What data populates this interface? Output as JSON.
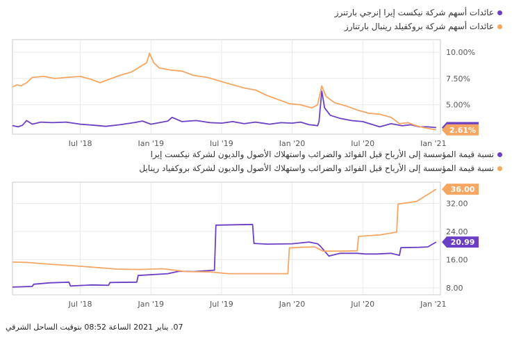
{
  "colors": {
    "purple": "#6b3fc4",
    "orange": "#f5a663",
    "grid": "#e8e8e8",
    "axis": "#c8c8c8"
  },
  "timestamp": "07. يناير 2021 الساعة 08:52 بتوقيت الساحل الشرقي",
  "chart_data": [
    {
      "type": "line",
      "y_format": "percent",
      "legend": [
        "عائدات أسهم شركة نيكست إيرا إنرجي بارتنرز",
        "عائدات أسهم شركة بروكفيلد رينبال بارتنارز"
      ],
      "x_ticks": [
        {
          "label": "Jul '18",
          "x": 2018.5
        },
        {
          "label": "Jan '19",
          "x": 2019.0
        },
        {
          "label": "Jul '19",
          "x": 2019.5
        },
        {
          "label": "Jan '20",
          "x": 2020.0
        },
        {
          "label": "Jul '20",
          "x": 2020.5
        },
        {
          "label": "Jan '21",
          "x": 2021.0
        }
      ],
      "y_ticks": [
        {
          "label": "5.00%",
          "v": 5.0
        },
        {
          "label": "7.50%",
          "v": 7.5
        },
        {
          "label": "10.00%",
          "v": 10.0
        }
      ],
      "xlim": [
        2018.02,
        2021.05
      ],
      "ylim": [
        2.2,
        11.2
      ],
      "series": [
        {
          "name": "عائدات أسهم شركة نيكست إيرا إنرجي بارتنرز",
          "color": "#6b3fc4",
          "end_label": "2.83%",
          "points": [
            [
              2018.02,
              3.02
            ],
            [
              2018.06,
              2.9
            ],
            [
              2018.09,
              3.05
            ],
            [
              2018.12,
              3.5
            ],
            [
              2018.16,
              3.15
            ],
            [
              2018.22,
              3.35
            ],
            [
              2018.3,
              3.3
            ],
            [
              2018.4,
              3.35
            ],
            [
              2018.5,
              3.15
            ],
            [
              2018.6,
              3.05
            ],
            [
              2018.68,
              2.95
            ],
            [
              2018.78,
              3.1
            ],
            [
              2018.88,
              3.3
            ],
            [
              2018.94,
              3.45
            ],
            [
              2019.0,
              3.15
            ],
            [
              2019.06,
              3.3
            ],
            [
              2019.12,
              3.45
            ],
            [
              2019.15,
              3.8
            ],
            [
              2019.22,
              3.4
            ],
            [
              2019.32,
              3.5
            ],
            [
              2019.42,
              3.3
            ],
            [
              2019.5,
              3.25
            ],
            [
              2019.58,
              3.4
            ],
            [
              2019.66,
              3.2
            ],
            [
              2019.74,
              3.35
            ],
            [
              2019.84,
              3.15
            ],
            [
              2019.92,
              3.3
            ],
            [
              2020.0,
              3.25
            ],
            [
              2020.06,
              3.35
            ],
            [
              2020.12,
              3.1
            ],
            [
              2020.16,
              3.05
            ],
            [
              2020.18,
              3.0
            ],
            [
              2020.19,
              3.4
            ],
            [
              2020.21,
              6.3
            ],
            [
              2020.23,
              4.7
            ],
            [
              2020.27,
              4.0
            ],
            [
              2020.34,
              3.7
            ],
            [
              2020.42,
              3.5
            ],
            [
              2020.5,
              3.4
            ],
            [
              2020.56,
              3.15
            ],
            [
              2020.62,
              2.9
            ],
            [
              2020.7,
              3.2
            ],
            [
              2020.78,
              3.0
            ],
            [
              2020.84,
              3.1
            ],
            [
              2020.9,
              2.9
            ],
            [
              2020.96,
              2.9
            ],
            [
              2021.02,
              2.83
            ]
          ]
        },
        {
          "name": "عائدات أسهم شركة بروكفيلد رينبال بارتنارز",
          "color": "#f5a663",
          "end_label": "2.61%",
          "points": [
            [
              2018.02,
              6.7
            ],
            [
              2018.05,
              6.9
            ],
            [
              2018.08,
              6.8
            ],
            [
              2018.12,
              7.1
            ],
            [
              2018.16,
              7.6
            ],
            [
              2018.24,
              7.7
            ],
            [
              2018.32,
              7.5
            ],
            [
              2018.4,
              7.6
            ],
            [
              2018.5,
              7.7
            ],
            [
              2018.58,
              7.4
            ],
            [
              2018.64,
              7.1
            ],
            [
              2018.7,
              7.4
            ],
            [
              2018.78,
              7.8
            ],
            [
              2018.86,
              8.1
            ],
            [
              2018.92,
              8.6
            ],
            [
              2018.97,
              9.0
            ],
            [
              2018.99,
              9.9
            ],
            [
              2019.02,
              9.0
            ],
            [
              2019.06,
              8.5
            ],
            [
              2019.14,
              8.3
            ],
            [
              2019.22,
              8.2
            ],
            [
              2019.3,
              7.8
            ],
            [
              2019.4,
              7.6
            ],
            [
              2019.5,
              7.2
            ],
            [
              2019.58,
              6.9
            ],
            [
              2019.66,
              6.6
            ],
            [
              2019.74,
              6.4
            ],
            [
              2019.82,
              5.9
            ],
            [
              2019.9,
              5.5
            ],
            [
              2019.98,
              5.1
            ],
            [
              2020.06,
              5.0
            ],
            [
              2020.14,
              4.7
            ],
            [
              2020.18,
              5.0
            ],
            [
              2020.21,
              6.8
            ],
            [
              2020.24,
              5.8
            ],
            [
              2020.3,
              5.2
            ],
            [
              2020.38,
              4.9
            ],
            [
              2020.46,
              4.5
            ],
            [
              2020.54,
              4.2
            ],
            [
              2020.62,
              4.1
            ],
            [
              2020.7,
              3.8
            ],
            [
              2020.76,
              3.2
            ],
            [
              2020.82,
              3.3
            ],
            [
              2020.88,
              3.0
            ],
            [
              2020.94,
              2.8
            ],
            [
              2021.02,
              2.61
            ]
          ]
        }
      ]
    },
    {
      "type": "line",
      "y_format": "number",
      "legend": [
        "نسبة قيمة المؤسسة إلى الأرباح قبل الفوائد والضرائب واستهلاك الأصول والديون لشركة نيكست إيرا",
        "نسبة قيمة المؤسسة إلى الأرباح قبل الفوائد والضرائب واستهلاك الأصول والديون لشركة بروكفياد رينايل"
      ],
      "x_ticks": [
        {
          "label": "Jul '18",
          "x": 2018.5
        },
        {
          "label": "Jan '19",
          "x": 2019.0
        },
        {
          "label": "Jul '19",
          "x": 2019.5
        },
        {
          "label": "Jan '20",
          "x": 2020.0
        },
        {
          "label": "Jul '20",
          "x": 2020.5
        },
        {
          "label": "Jan '21",
          "x": 2021.0
        }
      ],
      "y_ticks": [
        {
          "label": "8.00",
          "v": 8
        },
        {
          "label": "16.00",
          "v": 16
        },
        {
          "label": "24.00",
          "v": 24
        },
        {
          "label": "32.00",
          "v": 32
        }
      ],
      "xlim": [
        2018.02,
        2021.05
      ],
      "ylim": [
        6,
        38
      ],
      "series": [
        {
          "name": "نسبة قيمة المؤسسة إلى الأرباح قبل الفوائد والضرائب واستهلاك الأصول والديون لشركة نيكست إيرا",
          "color": "#6b3fc4",
          "end_label": "20.99",
          "points": [
            [
              2018.02,
              8.2
            ],
            [
              2018.16,
              8.4
            ],
            [
              2018.17,
              9.0
            ],
            [
              2018.28,
              9.4
            ],
            [
              2018.42,
              9.6
            ],
            [
              2018.43,
              8.5
            ],
            [
              2018.58,
              8.8
            ],
            [
              2018.7,
              8.7
            ],
            [
              2018.71,
              9.5
            ],
            [
              2018.9,
              9.6
            ],
            [
              2018.91,
              11.5
            ],
            [
              2019.12,
              12.0
            ],
            [
              2019.2,
              12.7
            ],
            [
              2019.3,
              12.6
            ],
            [
              2019.45,
              13.0
            ],
            [
              2019.46,
              25.8
            ],
            [
              2019.72,
              26.0
            ],
            [
              2019.73,
              20.6
            ],
            [
              2019.82,
              20.4
            ],
            [
              2020.0,
              20.5
            ],
            [
              2020.12,
              21.0
            ],
            [
              2020.18,
              20.5
            ],
            [
              2020.2,
              19.8
            ],
            [
              2020.26,
              17.0
            ],
            [
              2020.34,
              17.8
            ],
            [
              2020.46,
              17.8
            ],
            [
              2020.52,
              17.6
            ],
            [
              2020.6,
              17.6
            ],
            [
              2020.7,
              17.8
            ],
            [
              2020.76,
              17.2
            ],
            [
              2020.77,
              19.4
            ],
            [
              2020.9,
              19.5
            ],
            [
              2020.96,
              19.6
            ],
            [
              2021.02,
              20.99
            ]
          ]
        },
        {
          "name": "نسبة قيمة المؤسسة إلى الأرباح قبل الفوائد والضرائب واستهلاك الأصول والديون لشركة بروكفياد رينايل",
          "color": "#f5a663",
          "end_label": "36.00",
          "points": [
            [
              2018.02,
              15.3
            ],
            [
              2018.12,
              15.2
            ],
            [
              2018.28,
              14.7
            ],
            [
              2018.44,
              14.3
            ],
            [
              2018.6,
              13.8
            ],
            [
              2018.76,
              13.3
            ],
            [
              2018.92,
              13.2
            ],
            [
              2019.08,
              13.4
            ],
            [
              2019.25,
              12.6
            ],
            [
              2019.42,
              12.5
            ],
            [
              2019.55,
              12.0
            ],
            [
              2019.75,
              12.0
            ],
            [
              2019.97,
              12.0
            ],
            [
              2019.98,
              19.3
            ],
            [
              2020.06,
              19.5
            ],
            [
              2020.16,
              19.6
            ],
            [
              2020.19,
              19.0
            ],
            [
              2020.22,
              18.4
            ],
            [
              2020.34,
              18.4
            ],
            [
              2020.46,
              18.5
            ],
            [
              2020.47,
              22.6
            ],
            [
              2020.62,
              23.0
            ],
            [
              2020.74,
              23.8
            ],
            [
              2020.75,
              31.8
            ],
            [
              2020.88,
              32.5
            ],
            [
              2021.02,
              36.0
            ]
          ]
        }
      ]
    }
  ]
}
